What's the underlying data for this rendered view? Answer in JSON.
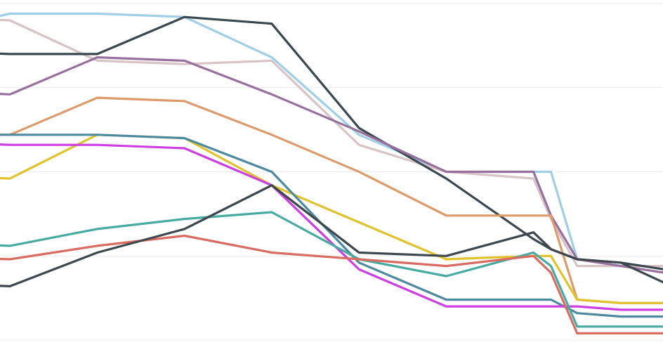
{
  "chart_data": {
    "type": "line",
    "title": "",
    "xlabel": "",
    "ylabel": "",
    "x": [
      0,
      1,
      2,
      3,
      4,
      5,
      6,
      7,
      7.2,
      7.5,
      8,
      8.5
    ],
    "xlim": [
      0,
      8.5
    ],
    "ylim": [
      0,
      1
    ],
    "grid": true,
    "gridlines_y": [
      0.0,
      0.25,
      0.5,
      0.75,
      1.0
    ],
    "series": [
      {
        "color": "#9fcfe6",
        "values": [
          0.91,
          0.97,
          0.97,
          0.96,
          0.84,
          0.61,
          0.5,
          0.5,
          0.5,
          0.24,
          0.22,
          0.22
        ]
      },
      {
        "color": "#d8c3c6",
        "values": [
          0.96,
          0.95,
          0.83,
          0.82,
          0.83,
          0.58,
          0.5,
          0.48,
          0.36,
          0.22,
          0.22,
          0.22
        ]
      },
      {
        "color": "#39474f",
        "values": [
          0.86,
          0.85,
          0.85,
          0.96,
          0.94,
          0.63,
          0.48,
          0.3,
          0.27,
          0.24,
          0.23,
          0.21
        ]
      },
      {
        "color": "#98709e",
        "values": [
          0.74,
          0.73,
          0.84,
          0.83,
          0.73,
          0.62,
          0.5,
          0.5,
          0.37,
          0.24,
          0.22,
          0.2
        ]
      },
      {
        "color": "#dd9a6a",
        "values": [
          0.61,
          0.61,
          0.72,
          0.71,
          0.61,
          0.5,
          0.37,
          0.37,
          0.37,
          0.12,
          0.11,
          0.11
        ]
      },
      {
        "color": "#e0c32c",
        "values": [
          0.49,
          0.48,
          0.61,
          0.6,
          0.46,
          0.35,
          0.24,
          0.25,
          0.25,
          0.12,
          0.11,
          0.11
        ]
      },
      {
        "color": "#4d8aa0",
        "values": [
          0.61,
          0.61,
          0.61,
          0.6,
          0.5,
          0.23,
          0.12,
          0.12,
          0.12,
          0.08,
          0.07,
          0.07
        ]
      },
      {
        "color": "#cd3fe0",
        "values": [
          0.59,
          0.58,
          0.58,
          0.57,
          0.46,
          0.21,
          0.1,
          0.1,
          0.1,
          0.1,
          0.09,
          0.09
        ]
      },
      {
        "color": "#47aba2",
        "values": [
          0.29,
          0.28,
          0.33,
          0.36,
          0.38,
          0.24,
          0.19,
          0.26,
          0.22,
          0.04,
          0.04,
          0.04
        ]
      },
      {
        "color": "#d96b60",
        "values": [
          0.25,
          0.24,
          0.28,
          0.31,
          0.26,
          0.24,
          0.22,
          0.25,
          0.2,
          0.02,
          0.02,
          0.02
        ]
      },
      {
        "color": "#3d474d",
        "values": [
          0.17,
          0.16,
          0.26,
          0.33,
          0.46,
          0.26,
          0.25,
          0.32,
          0.27,
          0.24,
          0.23,
          0.17
        ]
      }
    ]
  }
}
